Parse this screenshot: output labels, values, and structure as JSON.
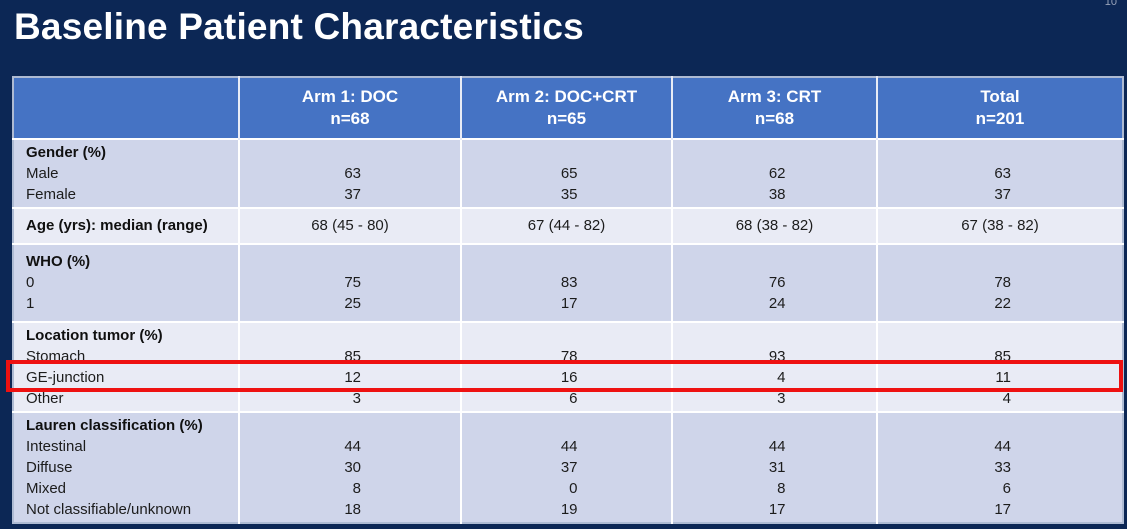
{
  "slide": {
    "title": "Baseline Patient Characteristics",
    "page_number": "10",
    "colors": {
      "background": "#0C2755",
      "header_bg": "#4573C4",
      "band_dark": "#CFD5EA",
      "band_light": "#E9EBF5",
      "highlight_red": "#EE1111",
      "title_text": "#FFFFFF",
      "body_text": "#1C1C1C"
    }
  },
  "table": {
    "columns": [
      {
        "label": "",
        "n": ""
      },
      {
        "label": "Arm 1: DOC",
        "n": "n=68"
      },
      {
        "label": "Arm 2: DOC+CRT",
        "n": "n=65"
      },
      {
        "label": "Arm 3: CRT",
        "n": "n=68"
      },
      {
        "label": "Total",
        "n": "n=201"
      }
    ],
    "groups": [
      {
        "label": "Gender (%)",
        "rows": [
          {
            "label": "Male",
            "values": [
              "63",
              "65",
              "62",
              "63"
            ]
          },
          {
            "label": "Female",
            "values": [
              "37",
              "35",
              "38",
              "37"
            ]
          }
        ]
      },
      {
        "label": "Age (yrs): median (range)",
        "values": [
          "68 (45 - 80)",
          "67 (44 - 82)",
          "68 (38 - 82)",
          "67 (38 - 82)"
        ]
      },
      {
        "label": "WHO (%)",
        "rows": [
          {
            "label": "0",
            "values": [
              "75",
              "83",
              "76",
              "78"
            ]
          },
          {
            "label": "1",
            "values": [
              "25",
              "17",
              "24",
              "22"
            ]
          }
        ]
      },
      {
        "label": "Location tumor (%)",
        "rows": [
          {
            "label": "Stomach",
            "values": [
              "85",
              "78",
              "93",
              "85"
            ]
          },
          {
            "label": "GE-junction",
            "values": [
              "12",
              "16",
              "4",
              "11"
            ],
            "highlighted": true
          },
          {
            "label": "Other",
            "values": [
              "3",
              "6",
              "3",
              "4"
            ]
          }
        ]
      },
      {
        "label": "Lauren classification (%)",
        "rows": [
          {
            "label": "Intestinal",
            "values": [
              "44",
              "44",
              "44",
              "44"
            ]
          },
          {
            "label": "Diffuse",
            "values": [
              "30",
              "37",
              "31",
              "33"
            ]
          },
          {
            "label": "Mixed",
            "values": [
              "8",
              "0",
              "8",
              "6"
            ]
          },
          {
            "label": "Not classifiable/unknown",
            "values": [
              "18",
              "19",
              "17",
              "17"
            ]
          }
        ]
      }
    ]
  }
}
